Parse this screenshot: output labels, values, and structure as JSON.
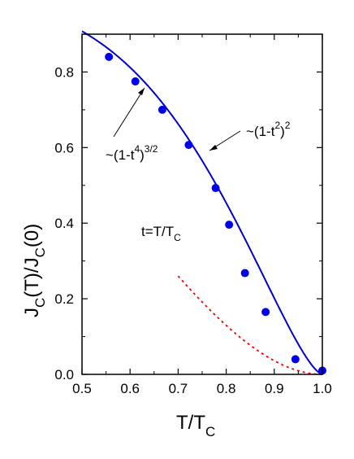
{
  "chart_data": {
    "type": "scatter",
    "xlabel": {
      "main": "T/T",
      "sub": "C"
    },
    "ylabel": {
      "main": "J",
      "sub1": "C",
      "mid": "(T)/J",
      "sub2": "C",
      "end": "(0)"
    },
    "xlim": [
      0.5,
      1.0
    ],
    "ylim": [
      0.0,
      0.9
    ],
    "x_ticks": [
      "0.5",
      "0.6",
      "0.7",
      "0.8",
      "0.9",
      "1.0"
    ],
    "y_ticks": [
      "0.0",
      "0.2",
      "0.4",
      "0.6",
      "0.8"
    ],
    "grid": false,
    "points": {
      "color": "#0000ee",
      "x": [
        0.556,
        0.611,
        0.667,
        0.722,
        0.778,
        0.806,
        0.839,
        0.882,
        0.944,
        1.0
      ],
      "y": [
        0.84,
        0.775,
        0.7,
        0.607,
        0.493,
        0.396,
        0.268,
        0.165,
        0.04,
        0.01
      ]
    },
    "curves": [
      {
        "formula": "(1-t^4)^(3/2)",
        "color": "#0000cc",
        "style": "solid",
        "x_range": [
          0.5,
          1.0
        ]
      },
      {
        "formula": "(1-t^2)^2",
        "color": "#ee0000",
        "style": "dotted",
        "x_range": [
          0.7,
          1.0
        ]
      }
    ],
    "annotations": {
      "curve1": {
        "prefix": "~(1-t",
        "sup1": "4",
        "mid": ")",
        "sup2": "3/2"
      },
      "curve2": {
        "prefix": "~(1-t",
        "sup1": "2",
        "mid": ")",
        "sup2": "2"
      },
      "param": {
        "main": "t=T/T",
        "sub": "C"
      }
    }
  }
}
